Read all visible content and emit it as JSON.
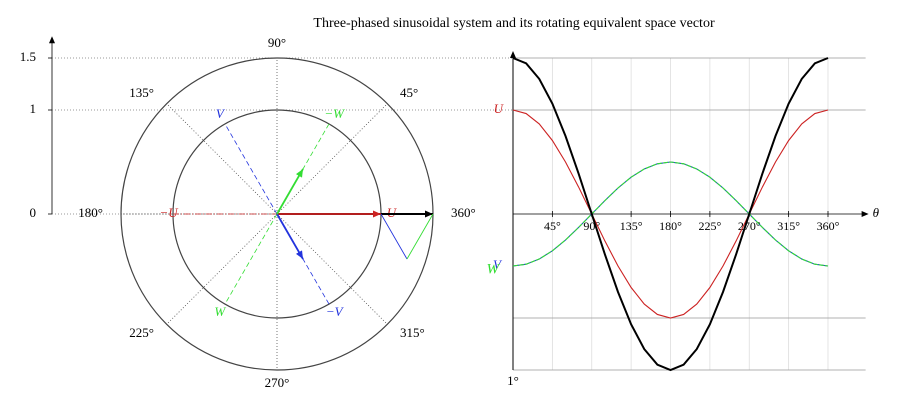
{
  "chart_data": [
    {
      "type": "phasor",
      "ylim": [
        0,
        1.68
      ],
      "yticks": [
        0,
        1,
        1.5
      ],
      "rings": [
        1,
        1.5
      ],
      "angle_ticks": [
        {
          "value": 45,
          "label": "45°"
        },
        {
          "value": 90,
          "label": "90°"
        },
        {
          "value": 135,
          "label": "135°"
        },
        {
          "value": 180,
          "label": "180°"
        },
        {
          "value": 225,
          "label": "225°"
        },
        {
          "value": 270,
          "label": "270°"
        },
        {
          "value": 315,
          "label": "315°"
        },
        {
          "value": 360,
          "label": "360°"
        }
      ],
      "axes": [
        {
          "name": "U",
          "neg_name": "−U",
          "angle": 0,
          "color": "#cc2222",
          "value": 1
        },
        {
          "name": "V",
          "neg_name": "−V",
          "angle": 120,
          "color": "#2233dd",
          "value": -0.5
        },
        {
          "name": "W",
          "neg_name": "−W",
          "angle": 240,
          "color": "#33dd33",
          "value": -0.5
        }
      ],
      "resultant": {
        "value": 1.5,
        "angle": 0,
        "color": "#000000"
      }
    },
    {
      "type": "line",
      "title": "Three-phased sinusoidal system and its rotating equivalent space vector",
      "xlabel": "θ",
      "origin_label": "1°",
      "xlim": [
        0,
        403
      ],
      "ylim": [
        -1.5,
        1.5
      ],
      "xticks": [
        {
          "value": 45,
          "label": "45°"
        },
        {
          "value": 90,
          "label": "90°"
        },
        {
          "value": 135,
          "label": "135°"
        },
        {
          "value": 180,
          "label": "180°"
        },
        {
          "value": 225,
          "label": "225°"
        },
        {
          "value": 270,
          "label": "270°"
        },
        {
          "value": 315,
          "label": "315°"
        },
        {
          "value": 360,
          "label": "360°"
        }
      ],
      "ygrid": [
        -1.5,
        -1,
        1,
        1.5
      ],
      "x": [
        0,
        15,
        30,
        45,
        60,
        75,
        90,
        105,
        120,
        135,
        150,
        165,
        180,
        195,
        210,
        225,
        240,
        255,
        270,
        285,
        300,
        315,
        330,
        345,
        360
      ],
      "series": [
        {
          "name": "U",
          "color": "#cc2222",
          "values": [
            1,
            0.966,
            0.866,
            0.707,
            0.5,
            0.259,
            0,
            -0.259,
            -0.5,
            -0.707,
            -0.866,
            -0.966,
            -1,
            -0.966,
            -0.866,
            -0.707,
            -0.5,
            -0.259,
            0,
            0.259,
            0.5,
            0.707,
            0.866,
            0.966,
            1
          ]
        },
        {
          "name": "V",
          "color": "#2233dd",
          "values": [
            -0.5,
            -0.483,
            -0.433,
            -0.354,
            -0.25,
            -0.129,
            0,
            0.129,
            0.25,
            0.354,
            0.433,
            0.483,
            0.5,
            0.483,
            0.433,
            0.354,
            0.25,
            0.129,
            0,
            -0.129,
            -0.25,
            -0.354,
            -0.433,
            -0.483,
            -0.5
          ]
        },
        {
          "name": "W",
          "color": "#33dd33",
          "values": [
            -0.5,
            -0.483,
            -0.433,
            -0.354,
            -0.25,
            -0.129,
            0,
            0.129,
            0.25,
            0.354,
            0.433,
            0.483,
            0.5,
            0.483,
            0.433,
            0.354,
            0.25,
            0.129,
            0,
            -0.129,
            -0.25,
            -0.354,
            -0.433,
            -0.483,
            -0.5
          ]
        },
        {
          "color": "#000000",
          "values": [
            1.5,
            1.449,
            1.299,
            1.061,
            0.75,
            0.388,
            0,
            -0.388,
            -0.75,
            -1.061,
            -1.299,
            -1.449,
            -1.5,
            -1.449,
            -1.299,
            -1.061,
            -0.75,
            -0.388,
            0,
            0.388,
            0.75,
            1.061,
            1.299,
            1.449,
            1.5
          ]
        }
      ]
    }
  ]
}
